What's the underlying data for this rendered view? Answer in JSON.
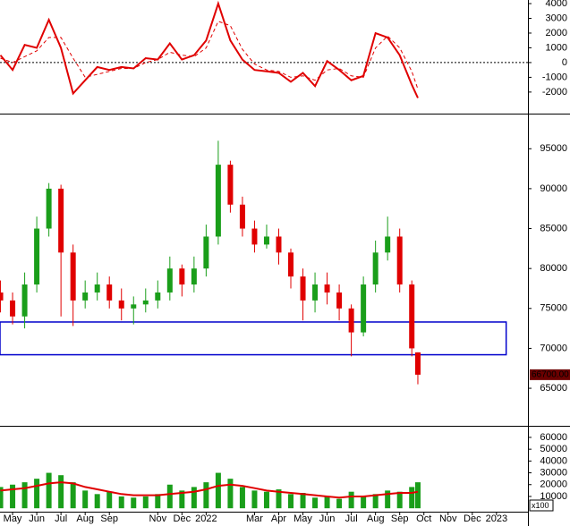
{
  "chart_data": [
    {
      "type": "line",
      "x": [
        -0.5,
        0,
        0.5,
        1,
        1.5,
        2,
        2.5,
        3,
        3.5,
        4,
        4.5,
        5,
        5.5,
        6,
        6.5,
        7,
        7.5,
        8,
        8.5,
        9,
        9.5,
        10,
        10.5,
        11,
        11.5,
        12,
        12.5,
        13,
        13.5,
        14,
        14.5,
        15,
        15.5,
        16,
        16.5,
        16.75
      ],
      "xlim": [
        -0.52,
        21.3
      ],
      "series": [
        {
          "color": "#e00000",
          "dash": false,
          "values": [
            500,
            -500,
            1200,
            1000,
            2900,
            1000,
            -2100,
            -1200,
            -300,
            -500,
            -300,
            -400,
            300,
            200,
            1300,
            200,
            500,
            1500,
            4000,
            1500,
            200,
            -500,
            -600,
            -700,
            -1300,
            -700,
            -1600,
            100,
            -500,
            -1200,
            -900,
            2000,
            1700,
            500,
            -1500,
            -2400
          ]
        },
        {
          "color": "#e00000",
          "dash": true,
          "values": [
            300,
            0,
            400,
            800,
            1700,
            1700,
            300,
            -1000,
            -800,
            -600,
            -400,
            -400,
            0,
            200,
            700,
            500,
            400,
            1000,
            2800,
            2500,
            900,
            -100,
            -500,
            -600,
            -1000,
            -900,
            -1200,
            -500,
            -400,
            -900,
            -1000,
            1000,
            1800,
            1000,
            -600,
            -1800
          ]
        }
      ],
      "ylim": [
        -3463,
        4244
      ],
      "yticks": [
        4000,
        3000,
        2000,
        1000,
        0,
        -1000,
        -2000
      ],
      "zero_line": true
    },
    {
      "type": "candlestick",
      "x": [
        -0.5,
        0,
        0.5,
        1,
        1.5,
        2,
        2.5,
        3,
        3.5,
        4,
        4.5,
        5,
        5.5,
        6,
        6.5,
        7,
        7.5,
        8,
        8.5,
        9,
        9.5,
        10,
        10.5,
        11,
        11.5,
        12,
        12.5,
        13,
        13.5,
        14,
        14.5,
        15,
        15.5,
        16,
        16.5,
        16.75
      ],
      "xlim": [
        -0.52,
        21.3
      ],
      "open": [
        77000,
        76000,
        74000,
        78000,
        85000,
        90000,
        82000,
        76000,
        77000,
        78000,
        76000,
        75000,
        75500,
        76000,
        77000,
        80000,
        78000,
        80000,
        84000,
        93000,
        88000,
        85000,
        83000,
        84000,
        82000,
        79000,
        76000,
        78000,
        77000,
        75000,
        72000,
        78000,
        82000,
        84000,
        78000,
        69500
      ],
      "high": [
        78500,
        77000,
        79500,
        86500,
        90700,
        90500,
        83000,
        78500,
        79500,
        79000,
        77500,
        76500,
        77500,
        78500,
        81500,
        80500,
        81500,
        85500,
        96000,
        93500,
        89000,
        86000,
        85500,
        85000,
        82500,
        80000,
        79500,
        79500,
        78000,
        75500,
        79000,
        83500,
        86500,
        85000,
        78500,
        69500
      ],
      "low": [
        74500,
        73000,
        72500,
        77000,
        84000,
        74000,
        72800,
        75000,
        76000,
        75000,
        73500,
        73000,
        74500,
        75000,
        76000,
        76500,
        77000,
        79000,
        83000,
        87000,
        84000,
        82000,
        82500,
        80500,
        77500,
        73500,
        74500,
        75500,
        73500,
        69000,
        71500,
        77000,
        81000,
        77000,
        69000,
        65500
      ],
      "close": [
        76000,
        74000,
        78000,
        85000,
        90000,
        82000,
        76000,
        77000,
        78000,
        76000,
        75000,
        75500,
        76000,
        77000,
        80000,
        78000,
        80000,
        84000,
        93000,
        88000,
        85000,
        83000,
        84000,
        82000,
        79000,
        76000,
        78000,
        77000,
        75000,
        72000,
        78000,
        82000,
        84000,
        78000,
        70000,
        66700
      ],
      "up_color": "#1a9e1a",
      "down_color": "#e00000",
      "ylim": [
        60300,
        99400
      ],
      "yticks": [
        95000,
        90000,
        85000,
        80000,
        75000,
        70000,
        65000
      ],
      "support_zone": {
        "ymax": 73300,
        "ymin": 69200,
        "xmax": 20.4,
        "color": "#0000cc"
      },
      "last_price_label": "66700.00"
    },
    {
      "type": "bar",
      "x": [
        -0.5,
        0,
        0.5,
        1,
        1.5,
        2,
        2.5,
        3,
        3.5,
        4,
        4.5,
        5,
        5.5,
        6,
        6.5,
        7,
        7.5,
        8,
        8.5,
        9,
        9.5,
        10,
        10.5,
        11,
        11.5,
        12,
        12.5,
        13,
        13.5,
        14,
        14.5,
        15,
        15.5,
        16,
        16.5,
        16.75
      ],
      "xlim": [
        -0.52,
        21.3
      ],
      "series": [
        {
          "type": "bar",
          "color": "#1a9e1a",
          "values": [
            18000,
            20000,
            22000,
            25000,
            30000,
            28000,
            22000,
            15000,
            12000,
            14000,
            10000,
            9000,
            10000,
            12000,
            20000,
            15000,
            18000,
            22000,
            30000,
            25000,
            18000,
            15000,
            14000,
            16000,
            12000,
            13000,
            9000,
            10000,
            8000,
            14000,
            10000,
            12000,
            15000,
            14000,
            18000,
            22000
          ]
        },
        {
          "type": "line",
          "color": "#e00000",
          "values": [
            15000,
            16000,
            17000,
            19000,
            21000,
            22000,
            21000,
            18000,
            16000,
            14000,
            12000,
            11000,
            11000,
            11000,
            12000,
            13000,
            14000,
            16000,
            19000,
            20000,
            19000,
            17000,
            15000,
            14000,
            13000,
            12000,
            11000,
            10000,
            9000,
            10000,
            10000,
            11000,
            12000,
            13000,
            13000,
            14000
          ]
        }
      ],
      "ylim": [
        -2900,
        69800
      ],
      "yticks": [
        60000,
        50000,
        40000,
        30000,
        20000,
        10000
      ],
      "unit_label": "x100",
      "xticks": [
        {
          "value": 0,
          "label": "May"
        },
        {
          "value": 1,
          "label": "Jun"
        },
        {
          "value": 2,
          "label": "Jul"
        },
        {
          "value": 3,
          "label": "Aug"
        },
        {
          "value": 4,
          "label": "Sep"
        },
        {
          "value": 6,
          "label": "Nov"
        },
        {
          "value": 7,
          "label": "Dec"
        },
        {
          "value": 8,
          "label": "2022"
        },
        {
          "value": 10,
          "label": "Mar"
        },
        {
          "value": 11,
          "label": "Apr"
        },
        {
          "value": 12,
          "label": "May"
        },
        {
          "value": 13,
          "label": "Jun"
        },
        {
          "value": 14,
          "label": "Jul"
        },
        {
          "value": 15,
          "label": "Aug"
        },
        {
          "value": 16,
          "label": "Sep"
        },
        {
          "value": 17,
          "label": "Oct"
        },
        {
          "value": 18,
          "label": "Nov"
        },
        {
          "value": 19,
          "label": "Dec"
        },
        {
          "value": 20,
          "label": "2023"
        }
      ]
    }
  ]
}
